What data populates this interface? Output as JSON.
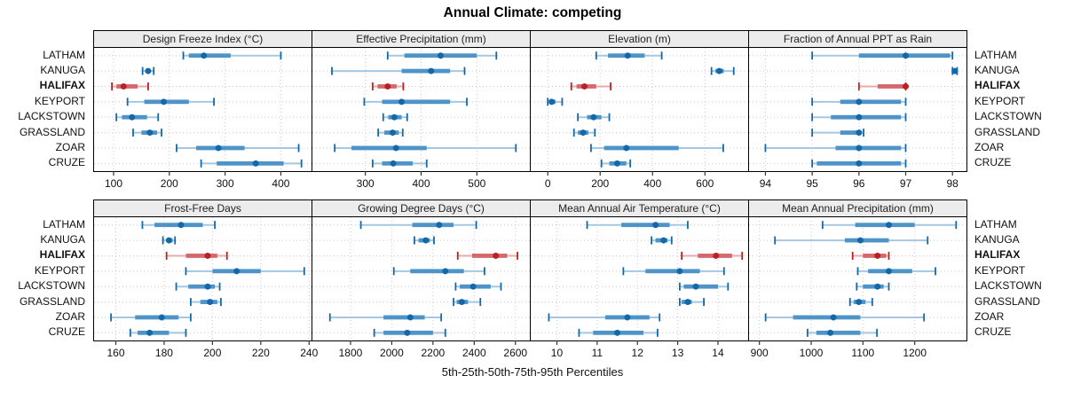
{
  "title": "Annual Climate: competing",
  "xlabel": "5th-25th-50th-75th-95th Percentiles",
  "sites": [
    "LATHAM",
    "KANUGA",
    "HALIFAX",
    "KEYPORT",
    "LACKSTOWN",
    "GRASSLAND",
    "ZOAR",
    "CRUZE"
  ],
  "highlight_site": "HALIFAX",
  "colors": {
    "blue_dark": "#1369a8",
    "blue_mid": "#4f94c9",
    "blue_light": "#a5c8e2",
    "red_dark": "#bb2024",
    "red_mid": "#d4686b",
    "red_light": "#e8aaab",
    "strip_bg": "#ececec",
    "grid": "#c9c9c9",
    "border": "#000000"
  },
  "chart_data": {
    "type": "dotplot-interval",
    "percentiles": [
      "5th",
      "25th",
      "50th",
      "75th",
      "95th"
    ],
    "legend_note": "values are [q05,q25,q50,q75,q95] per site",
    "panels": [
      {
        "title": "Design Freeze Index (°C)",
        "row": 0,
        "domain": [
          65,
          455
        ],
        "ticks": [
          100,
          200,
          300,
          400
        ],
        "values": {
          "LATHAM": [
            225,
            235,
            262,
            310,
            400
          ],
          "KANUGA": [
            152,
            158,
            162,
            166,
            172
          ],
          "HALIFAX": [
            97,
            105,
            118,
            143,
            162
          ],
          "KEYPORT": [
            125,
            155,
            190,
            235,
            280
          ],
          "LACKSTOWN": [
            105,
            115,
            133,
            160,
            180
          ],
          "GRASSLAND": [
            135,
            150,
            165,
            178,
            186
          ],
          "ZOAR": [
            213,
            248,
            288,
            335,
            432
          ],
          "CRUZE": [
            257,
            285,
            355,
            405,
            437
          ]
        }
      },
      {
        "title": "Effective Precipitation (mm)",
        "row": 0,
        "domain": [
          205,
          595
        ],
        "ticks": [
          300,
          400,
          500
        ],
        "values": {
          "LATHAM": [
            340,
            370,
            435,
            500,
            535
          ],
          "KANUGA": [
            240,
            365,
            418,
            452,
            478
          ],
          "HALIFAX": [
            313,
            322,
            340,
            356,
            368
          ],
          "KEYPORT": [
            298,
            330,
            365,
            452,
            482
          ],
          "LACKSTOWN": [
            332,
            341,
            352,
            365,
            375
          ],
          "GRASSLAND": [
            323,
            334,
            349,
            360,
            367
          ],
          "ZOAR": [
            245,
            275,
            355,
            410,
            570
          ],
          "CRUZE": [
            313,
            330,
            350,
            385,
            410
          ]
        }
      },
      {
        "title": "Elevation (m)",
        "row": 0,
        "domain": [
          -65,
          765
        ],
        "ticks": [
          0,
          200,
          400,
          600
        ],
        "values": {
          "LATHAM": [
            185,
            230,
            305,
            370,
            435
          ],
          "KANUGA": [
            625,
            640,
            655,
            672,
            710
          ],
          "HALIFAX": [
            90,
            110,
            140,
            185,
            240
          ],
          "KEYPORT": [
            0,
            5,
            15,
            30,
            55
          ],
          "LACKSTOWN": [
            115,
            150,
            175,
            205,
            235
          ],
          "GRASSLAND": [
            100,
            115,
            135,
            155,
            180
          ],
          "ZOAR": [
            165,
            215,
            300,
            500,
            670
          ],
          "CRUZE": [
            205,
            235,
            265,
            300,
            315
          ]
        }
      },
      {
        "title": "Fraction of Annual PPT as Rain",
        "row": 0,
        "domain": [
          93.65,
          98.3
        ],
        "ticks": [
          94,
          95,
          96,
          97,
          98
        ],
        "values": {
          "LATHAM": [
            95,
            96,
            97,
            97.95,
            98
          ],
          "KANUGA": [
            98,
            98,
            98.05,
            98.1,
            98.1
          ],
          "HALIFAX": [
            96,
            96.4,
            97,
            97,
            97
          ],
          "KEYPORT": [
            95,
            95.6,
            96,
            96.9,
            97
          ],
          "LACKSTOWN": [
            95,
            95.4,
            96,
            96.9,
            97
          ],
          "GRASSLAND": [
            95,
            95.6,
            96,
            96.05,
            96.1
          ],
          "ZOAR": [
            94,
            95.5,
            96,
            96.9,
            97
          ],
          "CRUZE": [
            95,
            95.1,
            96,
            96.9,
            97
          ]
        }
      },
      {
        "title": "Frost-Free Days",
        "row": 1,
        "domain": [
          151,
          241
        ],
        "ticks": [
          160,
          180,
          200,
          220,
          240
        ],
        "values": {
          "LATHAM": [
            171,
            176,
            187,
            196,
            201
          ],
          "KANUGA": [
            179.5,
            181,
            182,
            183.5,
            184.5
          ],
          "HALIFAX": [
            181,
            189,
            198,
            202,
            206
          ],
          "KEYPORT": [
            189,
            200,
            210,
            220,
            238
          ],
          "LACKSTOWN": [
            185,
            190,
            198,
            201,
            203
          ],
          "GRASSLAND": [
            191,
            195,
            199,
            202,
            203.5
          ],
          "ZOAR": [
            158,
            168,
            179,
            186,
            191
          ],
          "CRUZE": [
            166,
            169,
            174,
            182,
            189
          ]
        }
      },
      {
        "title": "Growing Degree Days (°C)",
        "row": 1,
        "domain": [
          1615,
          2670
        ],
        "ticks": [
          1800,
          2000,
          2200,
          2400,
          2600
        ],
        "values": {
          "LATHAM": [
            1850,
            2100,
            2230,
            2300,
            2410
          ],
          "KANUGA": [
            2110,
            2130,
            2165,
            2185,
            2205
          ],
          "HALIFAX": [
            2320,
            2390,
            2505,
            2560,
            2610
          ],
          "KEYPORT": [
            2010,
            2090,
            2260,
            2350,
            2450
          ],
          "LACKSTOWN": [
            2310,
            2330,
            2395,
            2480,
            2530
          ],
          "GRASSLAND": [
            2300,
            2315,
            2340,
            2370,
            2430
          ],
          "ZOAR": [
            1700,
            1960,
            2090,
            2160,
            2240
          ],
          "CRUZE": [
            1915,
            1960,
            2075,
            2200,
            2260
          ]
        }
      },
      {
        "title": "Mean Annual Air Temperature (°C)",
        "row": 1,
        "domain": [
          9.35,
          14.75
        ],
        "ticks": [
          10,
          11,
          12,
          13,
          14
        ],
        "values": {
          "LATHAM": [
            10.75,
            11.6,
            12.45,
            12.8,
            13.25
          ],
          "KANUGA": [
            12.35,
            12.45,
            12.65,
            12.75,
            12.85
          ],
          "HALIFAX": [
            13.1,
            13.5,
            13.95,
            14.35,
            14.6
          ],
          "KEYPORT": [
            11.65,
            12.2,
            13.05,
            13.55,
            14.15
          ],
          "LACKSTOWN": [
            13.05,
            13.15,
            13.45,
            14.0,
            14.25
          ],
          "GRASSLAND": [
            13.05,
            13.1,
            13.25,
            13.35,
            13.65
          ],
          "ZOAR": [
            9.8,
            11.2,
            11.75,
            12.3,
            12.55
          ],
          "CRUZE": [
            10.55,
            10.9,
            11.5,
            12.15,
            12.5
          ]
        }
      },
      {
        "title": "Mean Annual Precipitation (mm)",
        "row": 1,
        "domain": [
          880,
          1300
        ],
        "ticks": [
          900,
          1000,
          1100,
          1200
        ],
        "values": {
          "LATHAM": [
            1022,
            1085,
            1150,
            1200,
            1280
          ],
          "KANUGA": [
            930,
            1065,
            1095,
            1150,
            1225
          ],
          "HALIFAX": [
            1080,
            1100,
            1128,
            1145,
            1150
          ],
          "KEYPORT": [
            1090,
            1110,
            1150,
            1195,
            1240
          ],
          "LACKSTOWN": [
            1088,
            1100,
            1128,
            1140,
            1150
          ],
          "GRASSLAND": [
            1075,
            1082,
            1092,
            1105,
            1118
          ],
          "ZOAR": [
            912,
            965,
            1043,
            1095,
            1218
          ],
          "CRUZE": [
            993,
            1010,
            1037,
            1095,
            1127
          ]
        }
      }
    ]
  }
}
